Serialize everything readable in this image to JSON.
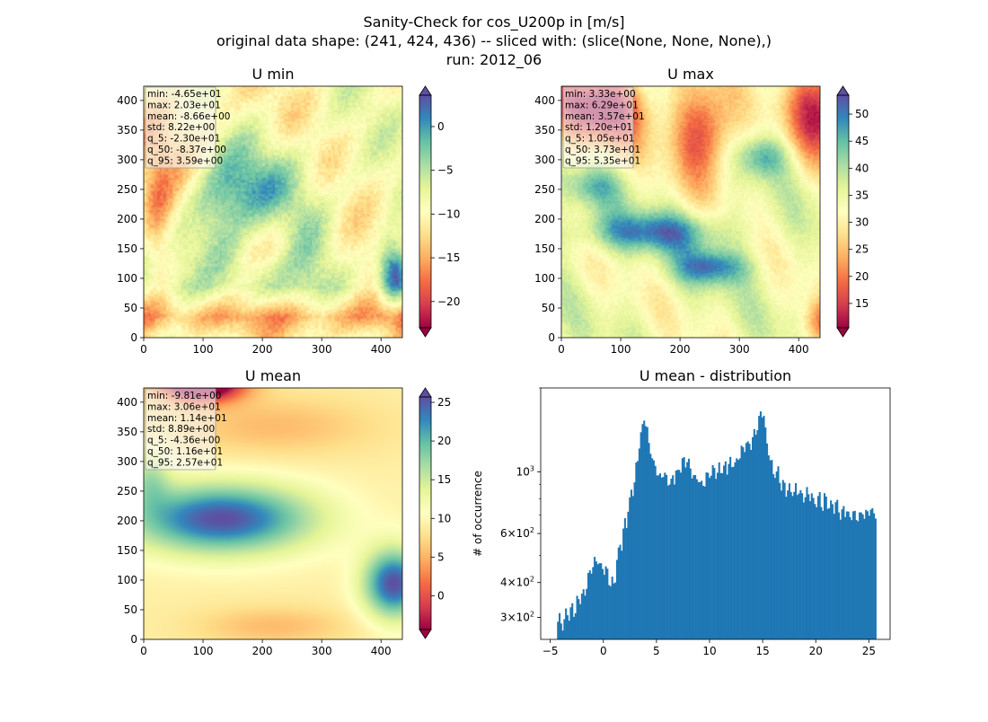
{
  "figure": {
    "title_lines": [
      "Sanity-Check for cos_U200p in [m/s]",
      "original data shape: (241, 424, 436) -- sliced with: (slice(None, None, None),)",
      "run: 2012_06"
    ]
  },
  "colors": {
    "spectral_stops": [
      "#9e0142",
      "#d53e4f",
      "#f46d43",
      "#fdae61",
      "#fee08b",
      "#ffffbf",
      "#e6f598",
      "#abdda4",
      "#66c2a5",
      "#3288bd",
      "#5e4fa2"
    ],
    "hist_bar": "#1f77b4",
    "stats_box_bg": "rgba(245,245,245,0.6)"
  },
  "chart_data": [
    {
      "type": "heatmap",
      "title": "U min",
      "xlim": [
        0,
        436
      ],
      "ylim": [
        0,
        424
      ],
      "xticks": [
        "0",
        "100",
        "200",
        "300",
        "400"
      ],
      "yticks": [
        "0",
        "50",
        "100",
        "150",
        "200",
        "250",
        "300",
        "350",
        "400"
      ],
      "colorbar": {
        "min": -23.0,
        "max": 3.59,
        "ticks": [
          -20,
          -15,
          -10,
          -5,
          0
        ],
        "tick_labels": [
          "−20",
          "−15",
          "−10",
          "−5",
          "0"
        ],
        "extend": "both"
      },
      "stats": [
        "min: -4.65e+01",
        "max: 2.03e+01",
        "mean: -8.66e+00",
        "std: 8.22e+00",
        "q_5: -2.30e+01",
        "q_50: -8.37e+00",
        "q_95: 3.59e+00"
      ]
    },
    {
      "type": "heatmap",
      "title": "U max",
      "xlim": [
        0,
        436
      ],
      "ylim": [
        0,
        424
      ],
      "xticks": [
        "0",
        "100",
        "200",
        "300",
        "400"
      ],
      "yticks": [
        "0",
        "50",
        "100",
        "150",
        "200",
        "250",
        "300",
        "350",
        "400"
      ],
      "colorbar": {
        "min": 10.5,
        "max": 53.5,
        "ticks": [
          15,
          20,
          25,
          30,
          35,
          40,
          45,
          50
        ],
        "tick_labels": [
          "15",
          "20",
          "25",
          "30",
          "35",
          "40",
          "45",
          "50"
        ],
        "extend": "both"
      },
      "stats": [
        "min: 3.33e+00",
        "max: 6.29e+01",
        "mean: 3.57e+01",
        "std: 1.20e+01",
        "q_5: 1.05e+01",
        "q_50: 3.73e+01",
        "q_95: 5.35e+01"
      ]
    },
    {
      "type": "heatmap",
      "title": "U mean",
      "xlim": [
        0,
        436
      ],
      "ylim": [
        0,
        424
      ],
      "xticks": [
        "0",
        "100",
        "200",
        "300",
        "400"
      ],
      "yticks": [
        "0",
        "50",
        "100",
        "150",
        "200",
        "250",
        "300",
        "350",
        "400"
      ],
      "colorbar": {
        "min": -4.36,
        "max": 25.7,
        "ticks": [
          0,
          5,
          10,
          15,
          20,
          25
        ],
        "tick_labels": [
          "0",
          "5",
          "10",
          "15",
          "20",
          "25"
        ],
        "extend": "both"
      },
      "stats": [
        "min: -9.81e+00",
        "max: 3.06e+01",
        "mean: 1.14e+01",
        "std: 8.89e+00",
        "q_5: -4.36e+00",
        "q_50: 1.16e+01",
        "q_95: 2.57e+01"
      ]
    },
    {
      "type": "bar",
      "title": "U mean - distribution",
      "ylabel": "# of occurrence",
      "yscale": "log",
      "xlim": [
        -5.9,
        27.0
      ],
      "ylim": [
        250,
        2000
      ],
      "xticks": [
        -5,
        0,
        5,
        10,
        15,
        20,
        25
      ],
      "xtick_labels": [
        "−5",
        "0",
        "5",
        "10",
        "15",
        "20",
        "25"
      ],
      "yticks": [
        300,
        400,
        600,
        1000
      ],
      "ytick_labels": [
        [
          "3",
          "×10",
          "2"
        ],
        [
          "4",
          "×10",
          "2"
        ],
        [
          "6",
          "×10",
          "2"
        ],
        [
          "",
          "10",
          "3"
        ]
      ],
      "bins": {
        "start": -4.36,
        "end": 25.7,
        "count": 200
      },
      "profile": [
        [
          -4.36,
          285
        ],
        [
          -3.5,
          300
        ],
        [
          -2.5,
          330
        ],
        [
          -1.8,
          380
        ],
        [
          -1.0,
          460
        ],
        [
          -0.5,
          490
        ],
        [
          0.0,
          445
        ],
        [
          0.6,
          410
        ],
        [
          1.0,
          400
        ],
        [
          1.2,
          440
        ],
        [
          1.5,
          520
        ],
        [
          2.0,
          620
        ],
        [
          2.5,
          800
        ],
        [
          3.0,
          980
        ],
        [
          3.5,
          1350
        ],
        [
          3.9,
          1560
        ],
        [
          4.3,
          1250
        ],
        [
          4.8,
          1050
        ],
        [
          5.5,
          960
        ],
        [
          6.5,
          920
        ],
        [
          7.2,
          1050
        ],
        [
          7.8,
          1080
        ],
        [
          8.5,
          950
        ],
        [
          9.5,
          900
        ],
        [
          10.5,
          1020
        ],
        [
          11.0,
          1000
        ],
        [
          12.0,
          1050
        ],
        [
          12.8,
          1140
        ],
        [
          13.5,
          1250
        ],
        [
          14.2,
          1320
        ],
        [
          14.7,
          1500
        ],
        [
          15.0,
          1720
        ],
        [
          15.3,
          1280
        ],
        [
          16.0,
          1020
        ],
        [
          17.0,
          900
        ],
        [
          18.0,
          860
        ],
        [
          19.0,
          820
        ],
        [
          20.0,
          790
        ],
        [
          21.0,
          770
        ],
        [
          22.0,
          740
        ],
        [
          23.0,
          700
        ],
        [
          24.0,
          690
        ],
        [
          25.0,
          720
        ],
        [
          25.7,
          700
        ]
      ]
    }
  ]
}
